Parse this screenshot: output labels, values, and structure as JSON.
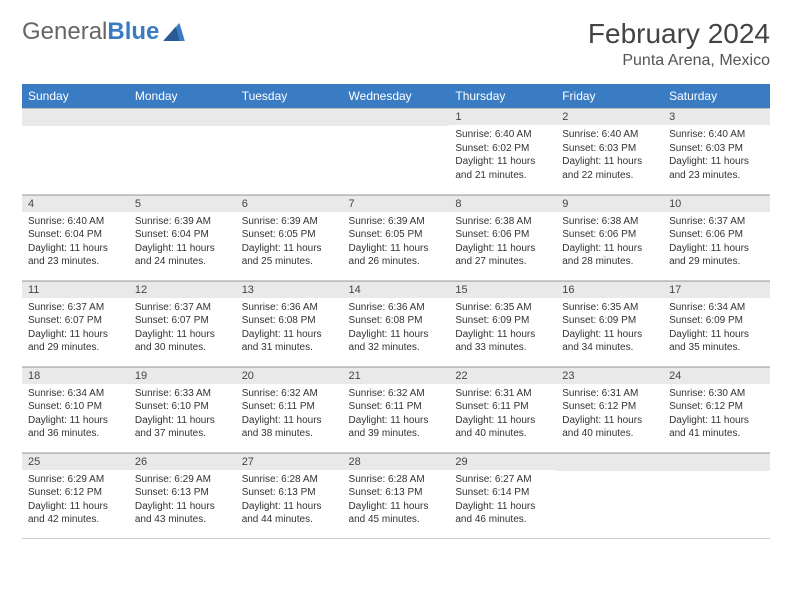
{
  "logo": {
    "text1": "General",
    "text2": "Blue"
  },
  "title": "February 2024",
  "location": "Punta Arena, Mexico",
  "colors": {
    "header_bg": "#3a7cc4",
    "header_fg": "#ffffff",
    "daynum_bg": "#e9e9e9"
  },
  "weekdays": [
    "Sunday",
    "Monday",
    "Tuesday",
    "Wednesday",
    "Thursday",
    "Friday",
    "Saturday"
  ],
  "weeks": [
    [
      null,
      null,
      null,
      null,
      {
        "n": "1",
        "sr": "Sunrise: 6:40 AM",
        "ss": "Sunset: 6:02 PM",
        "dl": "Daylight: 11 hours and 21 minutes."
      },
      {
        "n": "2",
        "sr": "Sunrise: 6:40 AM",
        "ss": "Sunset: 6:03 PM",
        "dl": "Daylight: 11 hours and 22 minutes."
      },
      {
        "n": "3",
        "sr": "Sunrise: 6:40 AM",
        "ss": "Sunset: 6:03 PM",
        "dl": "Daylight: 11 hours and 23 minutes."
      }
    ],
    [
      {
        "n": "4",
        "sr": "Sunrise: 6:40 AM",
        "ss": "Sunset: 6:04 PM",
        "dl": "Daylight: 11 hours and 23 minutes."
      },
      {
        "n": "5",
        "sr": "Sunrise: 6:39 AM",
        "ss": "Sunset: 6:04 PM",
        "dl": "Daylight: 11 hours and 24 minutes."
      },
      {
        "n": "6",
        "sr": "Sunrise: 6:39 AM",
        "ss": "Sunset: 6:05 PM",
        "dl": "Daylight: 11 hours and 25 minutes."
      },
      {
        "n": "7",
        "sr": "Sunrise: 6:39 AM",
        "ss": "Sunset: 6:05 PM",
        "dl": "Daylight: 11 hours and 26 minutes."
      },
      {
        "n": "8",
        "sr": "Sunrise: 6:38 AM",
        "ss": "Sunset: 6:06 PM",
        "dl": "Daylight: 11 hours and 27 minutes."
      },
      {
        "n": "9",
        "sr": "Sunrise: 6:38 AM",
        "ss": "Sunset: 6:06 PM",
        "dl": "Daylight: 11 hours and 28 minutes."
      },
      {
        "n": "10",
        "sr": "Sunrise: 6:37 AM",
        "ss": "Sunset: 6:06 PM",
        "dl": "Daylight: 11 hours and 29 minutes."
      }
    ],
    [
      {
        "n": "11",
        "sr": "Sunrise: 6:37 AM",
        "ss": "Sunset: 6:07 PM",
        "dl": "Daylight: 11 hours and 29 minutes."
      },
      {
        "n": "12",
        "sr": "Sunrise: 6:37 AM",
        "ss": "Sunset: 6:07 PM",
        "dl": "Daylight: 11 hours and 30 minutes."
      },
      {
        "n": "13",
        "sr": "Sunrise: 6:36 AM",
        "ss": "Sunset: 6:08 PM",
        "dl": "Daylight: 11 hours and 31 minutes."
      },
      {
        "n": "14",
        "sr": "Sunrise: 6:36 AM",
        "ss": "Sunset: 6:08 PM",
        "dl": "Daylight: 11 hours and 32 minutes."
      },
      {
        "n": "15",
        "sr": "Sunrise: 6:35 AM",
        "ss": "Sunset: 6:09 PM",
        "dl": "Daylight: 11 hours and 33 minutes."
      },
      {
        "n": "16",
        "sr": "Sunrise: 6:35 AM",
        "ss": "Sunset: 6:09 PM",
        "dl": "Daylight: 11 hours and 34 minutes."
      },
      {
        "n": "17",
        "sr": "Sunrise: 6:34 AM",
        "ss": "Sunset: 6:09 PM",
        "dl": "Daylight: 11 hours and 35 minutes."
      }
    ],
    [
      {
        "n": "18",
        "sr": "Sunrise: 6:34 AM",
        "ss": "Sunset: 6:10 PM",
        "dl": "Daylight: 11 hours and 36 minutes."
      },
      {
        "n": "19",
        "sr": "Sunrise: 6:33 AM",
        "ss": "Sunset: 6:10 PM",
        "dl": "Daylight: 11 hours and 37 minutes."
      },
      {
        "n": "20",
        "sr": "Sunrise: 6:32 AM",
        "ss": "Sunset: 6:11 PM",
        "dl": "Daylight: 11 hours and 38 minutes."
      },
      {
        "n": "21",
        "sr": "Sunrise: 6:32 AM",
        "ss": "Sunset: 6:11 PM",
        "dl": "Daylight: 11 hours and 39 minutes."
      },
      {
        "n": "22",
        "sr": "Sunrise: 6:31 AM",
        "ss": "Sunset: 6:11 PM",
        "dl": "Daylight: 11 hours and 40 minutes."
      },
      {
        "n": "23",
        "sr": "Sunrise: 6:31 AM",
        "ss": "Sunset: 6:12 PM",
        "dl": "Daylight: 11 hours and 40 minutes."
      },
      {
        "n": "24",
        "sr": "Sunrise: 6:30 AM",
        "ss": "Sunset: 6:12 PM",
        "dl": "Daylight: 11 hours and 41 minutes."
      }
    ],
    [
      {
        "n": "25",
        "sr": "Sunrise: 6:29 AM",
        "ss": "Sunset: 6:12 PM",
        "dl": "Daylight: 11 hours and 42 minutes."
      },
      {
        "n": "26",
        "sr": "Sunrise: 6:29 AM",
        "ss": "Sunset: 6:13 PM",
        "dl": "Daylight: 11 hours and 43 minutes."
      },
      {
        "n": "27",
        "sr": "Sunrise: 6:28 AM",
        "ss": "Sunset: 6:13 PM",
        "dl": "Daylight: 11 hours and 44 minutes."
      },
      {
        "n": "28",
        "sr": "Sunrise: 6:28 AM",
        "ss": "Sunset: 6:13 PM",
        "dl": "Daylight: 11 hours and 45 minutes."
      },
      {
        "n": "29",
        "sr": "Sunrise: 6:27 AM",
        "ss": "Sunset: 6:14 PM",
        "dl": "Daylight: 11 hours and 46 minutes."
      },
      null,
      null
    ]
  ]
}
